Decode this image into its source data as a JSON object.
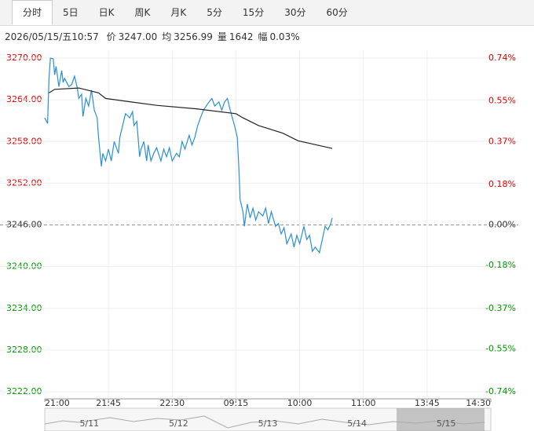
{
  "tabs": [
    "分时",
    "5日",
    "日K",
    "周K",
    "月K",
    "5分",
    "15分",
    "30分",
    "60分"
  ],
  "active_tab": 0,
  "info": {
    "datetime": "2026/05/15/五10:57",
    "items": [
      {
        "label": "价",
        "value": "3247.00"
      },
      {
        "label": "均",
        "value": "3256.99"
      },
      {
        "label": "量",
        "value": "1642"
      },
      {
        "label": "幅",
        "value": "0.03%"
      }
    ]
  },
  "chart_data": {
    "type": "line",
    "xlim": [
      0,
      315
    ],
    "xticks": [
      {
        "value": 0,
        "label": "21:00"
      },
      {
        "value": 45,
        "label": "21:45"
      },
      {
        "value": 90,
        "label": "22:30"
      },
      {
        "value": 135,
        "label": "09:15"
      },
      {
        "value": 180,
        "label": "10:00"
      },
      {
        "value": 225,
        "label": "11:00"
      },
      {
        "value": 270,
        "label": "13:45"
      },
      {
        "value": 315,
        "label": "14:30"
      }
    ],
    "ylim": [
      3222,
      3270
    ],
    "yticks": [
      {
        "value": 3270,
        "label": "3270.00"
      },
      {
        "value": 3264,
        "label": "3264.00"
      },
      {
        "value": 3258,
        "label": "3258.00"
      },
      {
        "value": 3252,
        "label": "3252.00"
      },
      {
        "value": 3246,
        "label": "3246.00"
      },
      {
        "value": 3240,
        "label": "3240.00"
      },
      {
        "value": 3234,
        "label": "3234.00"
      },
      {
        "value": 3228,
        "label": "3228.00"
      },
      {
        "value": 3222,
        "label": "3222.00"
      }
    ],
    "y2lim": [
      -0.74,
      0.74
    ],
    "y2ticks": [
      {
        "value": 0.74,
        "label": "0.74%"
      },
      {
        "value": 0.55,
        "label": "0.55%"
      },
      {
        "value": 0.37,
        "label": "0.37%"
      },
      {
        "value": 0.18,
        "label": "0.18%"
      },
      {
        "value": 0,
        "label": "0.00%"
      },
      {
        "value": -0.18,
        "label": "-0.18%"
      },
      {
        "value": -0.37,
        "label": "-0.37%"
      },
      {
        "value": -0.55,
        "label": "-0.55%"
      },
      {
        "value": -0.74,
        "label": "-0.74%"
      }
    ],
    "baseline": 3246,
    "up_color": "#e00000",
    "down_color": "#009900",
    "flat_color": "#333333",
    "grid": true,
    "series": [
      {
        "color": "#2a8fd4",
        "x": [
          0,
          2,
          3,
          4,
          6,
          7,
          8,
          10,
          12,
          13,
          14,
          17,
          19,
          21,
          23,
          24,
          26,
          27,
          29,
          31,
          33,
          35,
          37,
          38,
          40,
          41,
          43,
          45,
          47,
          49,
          52,
          53,
          55,
          57,
          60,
          62,
          63,
          65,
          67,
          68,
          70,
          72,
          73,
          75,
          77,
          79,
          82,
          84,
          86,
          88,
          90,
          93,
          95,
          97,
          99,
          102,
          104,
          106,
          108,
          110,
          112,
          114,
          116,
          118,
          120,
          123,
          125,
          127,
          129,
          131,
          134,
          136,
          137,
          138,
          140,
          141,
          143,
          145,
          147,
          149,
          151,
          154,
          156,
          158,
          160,
          163,
          165,
          167,
          169,
          171,
          174,
          176,
          178,
          180,
          183,
          185,
          187,
          189,
          191,
          194,
          196,
          198,
          200,
          202,
          203
        ],
        "values": [
          3261.4,
          3260.6,
          3267.1,
          3270.0,
          3269.9,
          3267.6,
          3268.8,
          3265.9,
          3268.2,
          3266.5,
          3267.1,
          3265.9,
          3266.2,
          3267.4,
          3265.7,
          3264.2,
          3264.8,
          3261.6,
          3264.2,
          3263.1,
          3265.4,
          3262.5,
          3261.4,
          3258.6,
          3254.4,
          3256.3,
          3255.2,
          3256.9,
          3255.2,
          3258.0,
          3256.3,
          3258.6,
          3260.3,
          3262.0,
          3261.4,
          3262.3,
          3260.3,
          3260.9,
          3255.8,
          3256.9,
          3258.0,
          3255.2,
          3257.5,
          3255.2,
          3256.3,
          3257.1,
          3255.2,
          3256.9,
          3255.8,
          3257.1,
          3255.2,
          3256.3,
          3255.8,
          3258.0,
          3256.9,
          3258.9,
          3257.5,
          3258.6,
          3260.3,
          3261.4,
          3262.5,
          3263.1,
          3263.7,
          3264.2,
          3263.1,
          3263.7,
          3262.5,
          3263.7,
          3264.2,
          3262.5,
          3260.3,
          3258.6,
          3254.6,
          3249.6,
          3247.9,
          3245.8,
          3249.0,
          3247.0,
          3248.4,
          3246.7,
          3247.9,
          3247.3,
          3248.4,
          3246.2,
          3247.9,
          3245.8,
          3246.2,
          3244.7,
          3245.6,
          3243.3,
          3244.7,
          3242.8,
          3244.5,
          3243.3,
          3245.8,
          3243.9,
          3244.5,
          3242.2,
          3242.8,
          3242.0,
          3243.9,
          3245.8,
          3245.3,
          3246.2,
          3247.0
        ]
      },
      {
        "color": "#222222",
        "x": [
          3,
          7,
          24,
          38,
          43,
          57,
          79,
          107,
          135,
          140,
          151,
          168,
          179,
          190,
          203
        ],
        "values": [
          3265.0,
          3265.5,
          3265.7,
          3265.0,
          3264.2,
          3263.8,
          3263.2,
          3262.7,
          3262.0,
          3261.4,
          3260.3,
          3259.2,
          3258.1,
          3257.6,
          3257.0
        ]
      }
    ]
  },
  "navigator": {
    "labels": [
      "5/11",
      "5/12",
      "5/13",
      "5/14",
      "5/15"
    ]
  }
}
